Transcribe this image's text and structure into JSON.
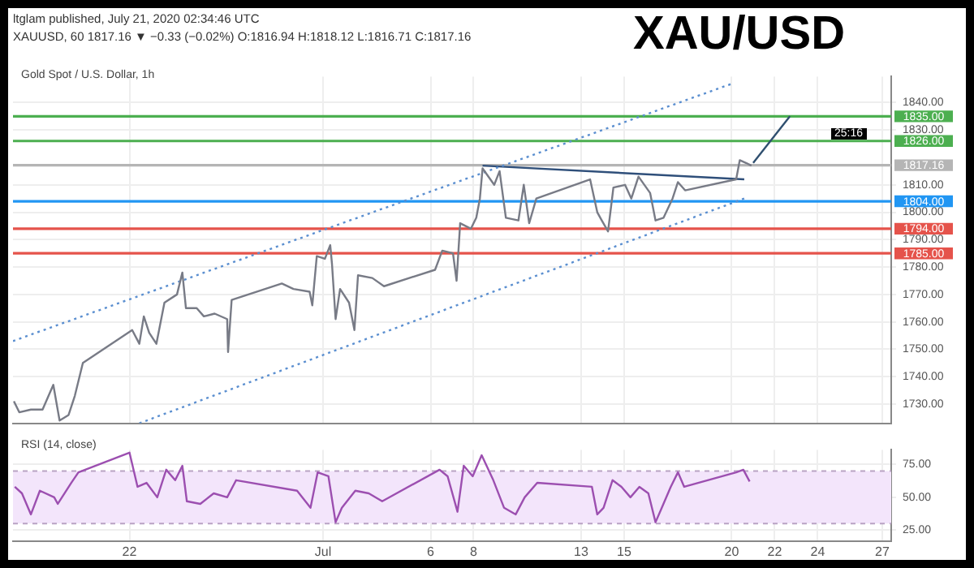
{
  "chart_data": [
    {
      "type": "line",
      "title": "XAU/USD",
      "subtitle": "Gold Spot / U.S. Dollar, 1h",
      "annotations": [
        "ltglam published, July 21, 2020 02:34:46 UTC",
        "XAUUSD, 60 1817.16 ▼ −0.33 (−0.02%) O:1816.94 H:1818.12 L:1816.71 C:1817.16",
        "25:16"
      ],
      "xlim": [
        "2020-06-16T14:00",
        "2020-07-27T10:00"
      ],
      "xticks": [
        {
          "value": "2020-06-22",
          "label": null
        },
        {
          "value": "2020-07-01",
          "label": null
        },
        {
          "value": "2020-07-06",
          "label": null
        },
        {
          "value": "2020-07-08",
          "label": null
        },
        {
          "value": "2020-07-13",
          "label": null
        },
        {
          "value": "2020-07-15",
          "label": null
        },
        {
          "value": "2020-07-20",
          "label": null
        },
        {
          "value": "2020-07-22",
          "label": null
        },
        {
          "value": "2020-07-24",
          "label": null
        },
        {
          "value": "2020-07-27",
          "label": null
        }
      ],
      "ylim": [
        1723,
        1849.5
      ],
      "yticks": [
        {
          "value": 1730,
          "label": "1730.00"
        },
        {
          "value": 1740,
          "label": "1740.00"
        },
        {
          "value": 1750,
          "label": "1750.00"
        },
        {
          "value": 1760,
          "label": "1760.00"
        },
        {
          "value": 1770,
          "label": "1770.00"
        },
        {
          "value": 1780,
          "label": "1780.00"
        },
        {
          "value": 1790,
          "label": "1790.00"
        },
        {
          "value": 1800,
          "label": "1800.00"
        },
        {
          "value": 1810,
          "label": "1810.00"
        },
        {
          "value": 1830,
          "label": "1830.00"
        },
        {
          "value": 1840,
          "label": "1840.00"
        }
      ],
      "grid": true,
      "tick_labels": "y",
      "marker": "none",
      "series": [
        {
          "color": "#787b86",
          "x": [
            "2020-06-16T15:00",
            "2020-06-16T21:00",
            "2020-06-17T10:00",
            "2020-06-17T23:00",
            "2020-06-18T11:00",
            "2020-06-18T18:00",
            "2020-06-19T04:00",
            "2020-06-19T11:00",
            "2020-06-19T20:00",
            "2020-06-22T03:00",
            "2020-06-22T11:00",
            "2020-06-22T16:00",
            "2020-06-22T22:00",
            "2020-06-23T06:00",
            "2020-06-23T15:00",
            "2020-06-24T05:00",
            "2020-06-24T11:00",
            "2020-06-24T15:00",
            "2020-06-25T03:00",
            "2020-06-25T11:00",
            "2020-06-25T23:00",
            "2020-06-26T13:00",
            "2020-06-26T14:00",
            "2020-06-26T18:00",
            "2020-06-29T02:00",
            "2020-06-29T15:00",
            "2020-06-30T09:00",
            "2020-06-30T12:00",
            "2020-06-30T17:00",
            "2020-07-01T02:00",
            "2020-07-01T08:00",
            "2020-07-01T10:00",
            "2020-07-01T14:00",
            "2020-07-01T19:00",
            "2020-07-02T05:00",
            "2020-07-02T11:00",
            "2020-07-02T15:00",
            "2020-07-03T07:00",
            "2020-07-03T20:00",
            "2020-07-06T05:00",
            "2020-07-06T13:00",
            "2020-07-07T01:00",
            "2020-07-07T05:00",
            "2020-07-07T09:00",
            "2020-07-07T21:00",
            "2020-07-08T03:00",
            "2020-07-08T07:00",
            "2020-07-08T10:00",
            "2020-07-08T23:00",
            "2020-07-09T05:00",
            "2020-07-09T12:00",
            "2020-07-10T02:00",
            "2020-07-10T08:00",
            "2020-07-10T14:00",
            "2020-07-10T22:00",
            "2020-07-13T10:00",
            "2020-07-13T18:00",
            "2020-07-13T23:00",
            "2020-07-14T06:00",
            "2020-07-14T12:00",
            "2020-07-15T01:00",
            "2020-07-15T08:00",
            "2020-07-15T16:00",
            "2020-07-16T05:00",
            "2020-07-16T11:00",
            "2020-07-16T20:00",
            "2020-07-17T06:00",
            "2020-07-17T12:00",
            "2020-07-17T20:00",
            "2020-07-20T05:00",
            "2020-07-20T09:00",
            "2020-07-20T16:00",
            "2020-07-20T22:00"
          ],
          "values": [
            1731,
            1727,
            1728,
            1728,
            1737,
            1724,
            1726,
            1733,
            1745,
            1757,
            1752,
            1762,
            1756,
            1752,
            1767,
            1770,
            1778,
            1765,
            1765,
            1762,
            1763,
            1761,
            1749,
            1768,
            1774,
            1772,
            1771,
            1766,
            1784,
            1783,
            1788,
            1781,
            1761,
            1772,
            1767,
            1757,
            1777,
            1776,
            1773,
            1779,
            1786,
            1785,
            1775,
            1796,
            1794,
            1798,
            1805,
            1816,
            1810,
            1815,
            1798,
            1797,
            1810,
            1796,
            1805,
            1812,
            1800,
            1797,
            1793,
            1809,
            1810,
            1805,
            1813,
            1807,
            1797,
            1798,
            1805,
            1811,
            1808,
            1812,
            1819,
            1818,
            1817
          ]
        },
        {
          "type": "line",
          "color": "#5b8fd0",
          "line_style": "dotted",
          "x": [
            "2020-06-16T14:00",
            "2020-07-20T01:00"
          ],
          "values": [
            1753,
            1847
          ]
        },
        {
          "type": "line",
          "color": "#5b8fd0",
          "line_style": "dotted",
          "x": [
            "2020-06-22T11:00",
            "2020-07-20T14:00"
          ],
          "values": [
            1723,
            1805
          ]
        },
        {
          "type": "line",
          "color": "#2f4f7a",
          "x": [
            "2020-07-08T10:00",
            "2020-07-20T14:00"
          ],
          "values": [
            1817,
            1812
          ]
        },
        {
          "type": "line",
          "color": "#2f4f6f",
          "x": [
            "2020-07-21T00:00",
            "2020-07-22T17:00"
          ],
          "values": [
            1818,
            1835
          ]
        }
      ],
      "ref_lines": [
        {
          "axis": "y",
          "value": 1835,
          "label": "1835.00",
          "color": "#4caf50"
        },
        {
          "axis": "y",
          "value": 1826,
          "label": "1826.00",
          "color": "#4caf50"
        },
        {
          "axis": "y",
          "value": 1817.16,
          "label": "1817.16",
          "color": "#b5b5b5"
        },
        {
          "axis": "y",
          "value": 1804,
          "label": "1804.00",
          "color": "#2196f3"
        },
        {
          "axis": "y",
          "value": 1794,
          "label": "1794.00",
          "color": "#e5534b"
        },
        {
          "axis": "y",
          "value": 1785,
          "label": "1785.00",
          "color": "#e5534b"
        }
      ]
    },
    {
      "type": "line",
      "title": "RSI (14, close)",
      "xlim": [
        "2020-06-16T14:00",
        "2020-07-27T10:00"
      ],
      "xticks": [
        {
          "value": "2020-06-22",
          "label": "22"
        },
        {
          "value": "2020-07-01",
          "label": "Jul"
        },
        {
          "value": "2020-07-06",
          "label": "6"
        },
        {
          "value": "2020-07-08",
          "label": "8"
        },
        {
          "value": "2020-07-13",
          "label": "13"
        },
        {
          "value": "2020-07-15",
          "label": "15"
        },
        {
          "value": "2020-07-20",
          "label": "20"
        },
        {
          "value": "2020-07-22",
          "label": "22"
        },
        {
          "value": "2020-07-24",
          "label": "24"
        },
        {
          "value": "2020-07-27",
          "label": "27"
        }
      ],
      "ylim": [
        16.7,
        86.1
      ],
      "yticks": [
        {
          "value": 25,
          "label": "25.00"
        },
        {
          "value": 50,
          "label": "50.00"
        },
        {
          "value": 75,
          "label": "75.00"
        }
      ],
      "grid": true,
      "marker": "none",
      "series": [
        {
          "color": "#9c4fb0",
          "x": [
            "2020-06-16T16:00",
            "2020-06-17T00:00",
            "2020-06-17T10:00",
            "2020-06-17T20:00",
            "2020-06-18T12:00",
            "2020-06-18T16:00",
            "2020-06-19T07:00",
            "2020-06-19T15:00",
            "2020-06-22T00:00",
            "2020-06-22T09:00",
            "2020-06-22T19:00",
            "2020-06-23T07:00",
            "2020-06-23T17:00",
            "2020-06-24T03:00",
            "2020-06-24T11:00",
            "2020-06-24T16:00",
            "2020-06-25T07:00",
            "2020-06-25T22:00",
            "2020-06-26T13:00",
            "2020-06-26T23:00",
            "2020-06-29T19:00",
            "2020-06-30T10:00",
            "2020-06-30T18:00",
            "2020-07-01T06:00",
            "2020-07-01T14:00",
            "2020-07-01T21:00",
            "2020-07-02T12:00",
            "2020-07-03T03:00",
            "2020-07-03T18:00",
            "2020-07-06T10:00",
            "2020-07-06T19:00",
            "2020-07-07T06:00",
            "2020-07-07T13:00",
            "2020-07-07T23:00",
            "2020-07-08T09:00",
            "2020-07-08T22:00",
            "2020-07-09T10:00",
            "2020-07-09T23:00",
            "2020-07-10T09:00",
            "2020-07-10T23:00",
            "2020-07-13T12:00",
            "2020-07-13T18:00",
            "2020-07-14T01:00",
            "2020-07-14T11:00",
            "2020-07-14T21:00",
            "2020-07-15T07:00",
            "2020-07-15T17:00",
            "2020-07-16T03:00",
            "2020-07-16T11:00",
            "2020-07-16T18:00",
            "2020-07-17T04:00",
            "2020-07-17T12:00",
            "2020-07-17T19:00",
            "2020-07-20T05:00",
            "2020-07-20T13:00",
            "2020-07-20T20:00"
          ],
          "values": [
            58,
            53,
            37,
            55,
            50,
            45,
            61,
            69,
            84,
            58,
            61,
            50,
            71,
            63,
            74,
            47,
            45,
            53,
            50,
            63,
            55,
            42,
            69,
            66,
            31,
            42,
            55,
            53,
            47,
            71,
            66,
            39,
            74,
            66,
            82,
            63,
            42,
            37,
            50,
            61,
            58,
            37,
            42,
            63,
            58,
            50,
            58,
            53,
            31,
            42,
            58,
            69,
            58,
            69,
            71,
            62
          ]
        }
      ],
      "bands": [
        {
          "axis": "y",
          "from": 30,
          "to": 70,
          "color": "#f3e5fb"
        }
      ],
      "ref_lines": [
        {
          "axis": "y",
          "value": 70,
          "color": "#b9a3c4",
          "line_style": "dashed"
        },
        {
          "axis": "y",
          "value": 30,
          "color": "#b9a3c4",
          "line_style": "dashed"
        }
      ]
    }
  ]
}
